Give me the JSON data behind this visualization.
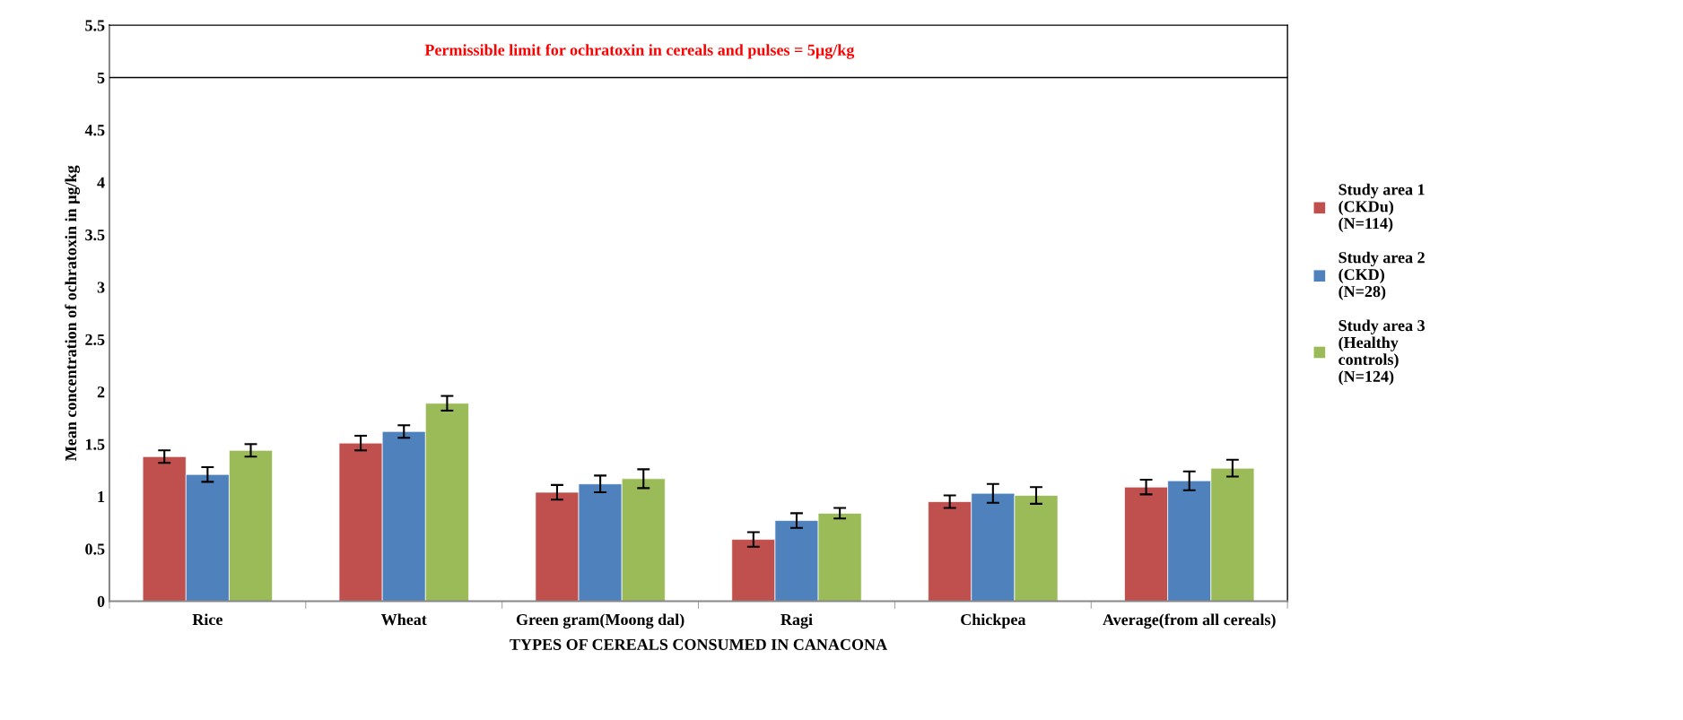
{
  "chart_data": {
    "type": "bar",
    "xlabel": "TYPES OF CEREALS CONSUMED IN CANACONA",
    "ylabel": "Mean concentration of ochratoxin in µg/kg",
    "categories": [
      "Rice",
      "Wheat",
      "Green gram(Moong dal)",
      "Ragi",
      "Chickpea",
      "Average(from all cereals)"
    ],
    "series": [
      {
        "name": "Study area 1\n(CKDu)\n(N=114)",
        "color": "#c0504d",
        "values": [
          1.38,
          1.51,
          1.04,
          0.59,
          0.95,
          1.09
        ],
        "errors": [
          0.06,
          0.07,
          0.07,
          0.07,
          0.06,
          0.07
        ]
      },
      {
        "name": "Study area 2\n(CKD)\n(N=28)",
        "color": "#4f81bd",
        "values": [
          1.21,
          1.62,
          1.12,
          0.77,
          1.03,
          1.15
        ],
        "errors": [
          0.07,
          0.06,
          0.08,
          0.07,
          0.09,
          0.09
        ]
      },
      {
        "name": "Study area 3\n(Healthy\ncontrols)\n(N=124)",
        "color": "#9bbb59",
        "values": [
          1.44,
          1.89,
          1.17,
          0.84,
          1.01,
          1.27
        ],
        "errors": [
          0.06,
          0.07,
          0.09,
          0.05,
          0.08,
          0.08
        ]
      }
    ],
    "ylim": [
      0,
      5.5
    ],
    "yticks": [
      0,
      0.5,
      1,
      1.5,
      2,
      2.5,
      3,
      3.5,
      4,
      4.5,
      5,
      5.5
    ],
    "ref_lines": [
      {
        "axis": "y",
        "value": 5,
        "label": "Permissible limit for ochratoxin in cereals and pulses = 5µg/kg",
        "color": "#000000"
      }
    ],
    "grid": false,
    "legend": "right"
  }
}
